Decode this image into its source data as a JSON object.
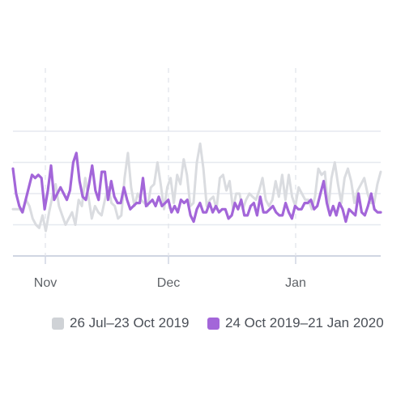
{
  "chart_data": {
    "type": "line",
    "x_axis": {
      "tick_labels": [
        "Nov",
        "Dec",
        "Jan"
      ],
      "range": [
        "24 Oct 2019",
        "21 Jan 2020"
      ]
    },
    "y_axis": {
      "gridlines": 4,
      "tick_labels_visible": false
    },
    "grid": {
      "horizontal": true,
      "vertical_dashed_at_ticks": true
    },
    "legend": {
      "placement": "bottom"
    },
    "series": [
      {
        "name": "26 Jul–23 Oct 2019",
        "color": "#dadce0",
        "values": [
          1.5,
          1.5,
          1.5,
          1.4,
          1.8,
          1.6,
          1.2,
          1.0,
          0.9,
          1.3,
          0.8,
          1.4,
          1.9,
          2.3,
          1.6,
          1.3,
          1.0,
          1.2,
          1.4,
          1.0,
          1.8,
          1.6,
          2.5,
          1.9,
          1.2,
          1.6,
          1.4,
          1.3,
          1.8,
          2.2,
          1.7,
          1.6,
          1.2,
          1.3,
          2.5,
          3.3,
          2.2,
          1.6,
          2.0,
          1.8,
          1.7,
          1.6,
          2.2,
          2.3,
          3.0,
          2.3,
          1.5,
          2.2,
          2.5,
          1.7,
          2.6,
          2.3,
          3.1,
          2.6,
          1.6,
          1.7,
          3.0,
          3.6,
          2.8,
          1.6,
          1.8,
          1.9,
          1.5,
          2.5,
          2.6,
          2.1,
          2.4,
          1.5,
          2.0,
          2.0,
          1.5,
          1.8,
          2.0,
          1.9,
          1.8,
          2.1,
          2.5,
          1.8,
          1.6,
          1.8,
          2.4,
          1.9,
          2.6,
          1.8,
          2.6,
          1.9,
          1.6,
          2.2,
          2.0,
          1.8,
          1.8,
          1.5,
          1.9,
          2.8,
          2.6,
          2.7,
          1.5,
          2.5,
          3.0,
          2.3,
          1.7,
          2.5,
          2.8,
          2.4,
          1.7,
          2.1,
          2.3,
          2.5,
          2.0,
          1.7,
          1.7,
          2.3,
          2.7
        ]
      },
      {
        "name": "24 Oct 2019–21 Jan 2020",
        "color": "#a366d9",
        "values": [
          2.8,
          2.0,
          1.6,
          1.4,
          1.8,
          2.2,
          2.6,
          2.5,
          2.6,
          2.5,
          1.5,
          2.1,
          2.9,
          1.8,
          2.0,
          2.2,
          2.0,
          1.8,
          2.1,
          3.0,
          3.3,
          2.4,
          1.9,
          1.8,
          2.3,
          2.9,
          2.1,
          1.8,
          2.7,
          2.7,
          1.8,
          2.4,
          1.9,
          1.7,
          1.7,
          2.2,
          1.8,
          1.5,
          1.6,
          1.7,
          1.7,
          2.5,
          1.6,
          1.7,
          1.8,
          1.6,
          1.9,
          1.6,
          1.7,
          1.8,
          1.4,
          1.6,
          1.4,
          1.8,
          1.7,
          1.8,
          1.3,
          1.1,
          1.5,
          1.7,
          1.4,
          1.4,
          1.7,
          1.4,
          1.6,
          1.4,
          1.5,
          1.5,
          1.2,
          1.3,
          1.7,
          1.5,
          1.8,
          1.3,
          1.3,
          1.6,
          1.7,
          1.3,
          1.9,
          1.4,
          1.4,
          1.5,
          1.6,
          1.4,
          1.3,
          1.3,
          1.7,
          1.4,
          1.2,
          1.6,
          1.5,
          1.5,
          1.7,
          1.7,
          1.8,
          1.5,
          1.6,
          2.0,
          2.4,
          1.7,
          1.3,
          1.6,
          1.3,
          1.7,
          1.5,
          1.1,
          1.5,
          1.4,
          1.3,
          2.0,
          1.4,
          1.3,
          1.6,
          2.0,
          1.5,
          1.4,
          1.4
        ]
      }
    ]
  }
}
